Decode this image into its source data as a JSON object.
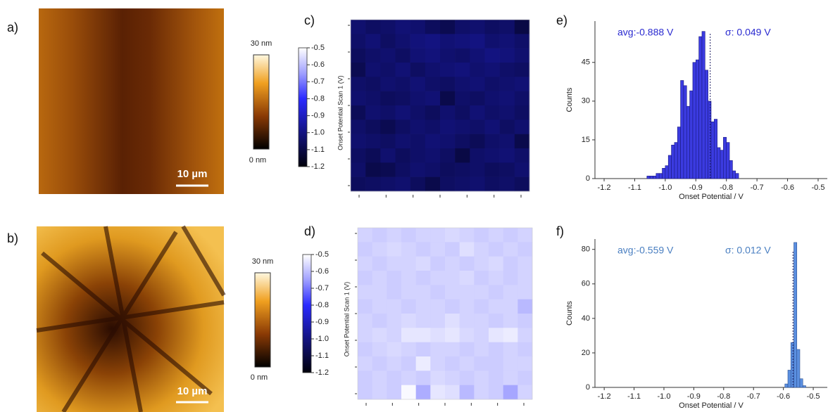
{
  "afm": [
    {
      "label": "a)",
      "colorbar_max": "30 nm",
      "colorbar_min": "0 nm",
      "scale_bar": "10 µm"
    },
    {
      "label": "b)",
      "colorbar_max": "30 nm",
      "colorbar_min": "0 nm",
      "scale_bar": "10 µm"
    }
  ],
  "maps": [
    {
      "label": "c)",
      "colorbar_label": "Onset Potential Scan 1 (V)",
      "clim": [
        -1.2,
        -0.5
      ],
      "cticks": [
        -0.5,
        -0.6,
        -0.7,
        -0.8,
        -0.9,
        {
          "value": -1,
          "label": "-1.0"
        },
        -1.1,
        -1.2
      ],
      "colormap": [
        {
          "value": -1.2,
          "color": "#00000a"
        },
        {
          "value": -1,
          "color": "#131380"
        },
        {
          "value": -0.8,
          "color": "#2a2aff"
        },
        {
          "value": -0.65,
          "color": "#a0a0ff"
        },
        {
          "value": -0.5,
          "color": "#ffffff"
        }
      ],
      "values": [
        [
          -1.03,
          -1.05,
          -1.04,
          -1.02,
          -1.03,
          -1.06,
          -1.08,
          -1.04,
          -1.03,
          -1.05,
          -1.04,
          -1.1
        ],
        [
          -1.04,
          -1.02,
          -1.05,
          -1.03,
          -1.01,
          -1.0,
          -1.02,
          -1.01,
          -1.0,
          -1.03,
          -1.02,
          -1.04
        ],
        [
          -1.06,
          -1.04,
          -1.03,
          -1.05,
          -1.02,
          -1.01,
          -1.03,
          -1.04,
          -1.02,
          -1.0,
          -1.01,
          -1.03
        ],
        [
          -1.08,
          -1.03,
          -1.04,
          -1.02,
          -1.05,
          -1.03,
          -1.02,
          -1.01,
          -1.03,
          -1.02,
          -1.04,
          -1.05
        ],
        [
          -1.04,
          -1.05,
          -1.03,
          -1.04,
          -1.02,
          -1.04,
          -1.05,
          -1.03,
          -1.02,
          -1.04,
          -1.03,
          -1.02
        ],
        [
          -1.03,
          -1.04,
          -1.06,
          -1.05,
          -1.03,
          -1.02,
          -1.09,
          -1.04,
          -1.05,
          -1.03,
          -1.02,
          -1.04
        ],
        [
          -1.07,
          -1.03,
          -1.04,
          -1.02,
          -1.04,
          -1.06,
          -1.03,
          -1.05,
          -1.02,
          -1.04,
          -1.03,
          -1.05
        ],
        [
          -1.04,
          -1.06,
          -1.08,
          -1.05,
          -1.03,
          -1.04,
          -1.02,
          -1.03,
          -1.04,
          -1.02,
          -1.05,
          -1.03
        ],
        [
          -1.03,
          -1.04,
          -1.05,
          -1.03,
          -1.04,
          -1.02,
          -1.03,
          -1.05,
          -1.07,
          -1.04,
          -1.03,
          -1.09
        ],
        [
          -1.05,
          -1.07,
          -1.03,
          -1.06,
          -1.04,
          -1.03,
          -1.05,
          -1.1,
          -1.04,
          -1.03,
          -1.02,
          -1.04
        ],
        [
          -1.04,
          -1.09,
          -1.08,
          -1.05,
          -1.03,
          -1.04,
          -1.06,
          -1.05,
          -1.04,
          -1.06,
          -1.05,
          -1.03
        ],
        [
          -1.06,
          -1.05,
          -1.04,
          -1.03,
          -1.06,
          -1.09,
          -1.05,
          -1.04,
          -1.03,
          -1.05,
          -1.04,
          -1.06
        ]
      ]
    },
    {
      "label": "d)",
      "colorbar_label": "Onset Potential Scan 1 (V)",
      "clim": [
        -1.2,
        -0.5
      ],
      "cticks": [
        -0.5,
        -0.6,
        -0.7,
        -0.8,
        -0.9,
        {
          "value": -1,
          "label": "-1.0"
        },
        -1.1,
        -1.2
      ],
      "colormap": [
        {
          "value": -1.2,
          "color": "#00000a"
        },
        {
          "value": -1,
          "color": "#131380"
        },
        {
          "value": -0.8,
          "color": "#2a2aff"
        },
        {
          "value": -0.65,
          "color": "#a0a0ff"
        },
        {
          "value": -0.5,
          "color": "#ffffff"
        }
      ],
      "values": [
        [
          -0.57,
          -0.58,
          -0.57,
          -0.58,
          -0.57,
          -0.57,
          -0.56,
          -0.57,
          -0.58,
          -0.57,
          -0.58,
          -0.57
        ],
        [
          -0.58,
          -0.57,
          -0.56,
          -0.57,
          -0.58,
          -0.57,
          -0.58,
          -0.55,
          -0.57,
          -0.58,
          -0.57,
          -0.58
        ],
        [
          -0.57,
          -0.58,
          -0.57,
          -0.57,
          -0.56,
          -0.58,
          -0.57,
          -0.58,
          -0.57,
          -0.56,
          -0.58,
          -0.57
        ],
        [
          -0.58,
          -0.57,
          -0.58,
          -0.57,
          -0.58,
          -0.57,
          -0.57,
          -0.56,
          -0.58,
          -0.57,
          -0.58,
          -0.57
        ],
        [
          -0.57,
          -0.57,
          -0.58,
          -0.57,
          -0.57,
          -0.58,
          -0.57,
          -0.57,
          -0.57,
          -0.58,
          -0.57,
          -0.57
        ],
        [
          -0.58,
          -0.57,
          -0.57,
          -0.58,
          -0.57,
          -0.57,
          -0.58,
          -0.57,
          -0.58,
          -0.57,
          -0.57,
          -0.61
        ],
        [
          -0.57,
          -0.58,
          -0.57,
          -0.56,
          -0.57,
          -0.57,
          -0.55,
          -0.57,
          -0.57,
          -0.58,
          -0.57,
          -0.58
        ],
        [
          -0.57,
          -0.56,
          -0.57,
          -0.54,
          -0.54,
          -0.55,
          -0.54,
          -0.56,
          -0.57,
          -0.54,
          -0.53,
          -0.57
        ],
        [
          -0.58,
          -0.57,
          -0.56,
          -0.57,
          -0.58,
          -0.57,
          -0.57,
          -0.58,
          -0.57,
          -0.58,
          -0.57,
          -0.58
        ],
        [
          -0.57,
          -0.58,
          -0.57,
          -0.58,
          -0.53,
          -0.57,
          -0.58,
          -0.57,
          -0.58,
          -0.58,
          -0.57,
          -0.57
        ],
        [
          -0.58,
          -0.57,
          -0.58,
          -0.57,
          -0.58,
          -0.56,
          -0.57,
          -0.58,
          -0.57,
          -0.58,
          -0.57,
          -0.58
        ],
        [
          -0.58,
          -0.57,
          -0.58,
          -0.51,
          -0.63,
          -0.54,
          -0.55,
          -0.61,
          -0.57,
          -0.58,
          -0.64,
          -0.57
        ]
      ]
    }
  ],
  "chart_data": [
    {
      "type": "histogram",
      "label": "e)",
      "xlabel": "Onset Potential /  V",
      "ylabel": "Counts",
      "annotations": [
        "avg:-0.888 V",
        "σ: 0.049 V"
      ],
      "annotation_color": "#2a2ad0",
      "color": "#3b3be0",
      "edge_color": "#1a1a80",
      "bins": [
        -1.06,
        -1.05,
        -1.04,
        -1.03,
        -1.02,
        -1.01,
        -1.0,
        -0.99,
        -0.98,
        -0.97,
        -0.96,
        -0.95,
        -0.94,
        -0.93,
        -0.92,
        -0.91,
        -0.9,
        -0.89,
        -0.88,
        -0.87,
        -0.86,
        -0.85,
        -0.84,
        -0.83,
        -0.82,
        -0.81,
        -0.8,
        -0.79,
        -0.78,
        -0.77,
        -0.76
      ],
      "counts": [
        1,
        1,
        1,
        2,
        2,
        4,
        5,
        9,
        13,
        14,
        20,
        38,
        36,
        28,
        34,
        45,
        46,
        55,
        57,
        42,
        30,
        22,
        23,
        12,
        11,
        16,
        14,
        7,
        3,
        2
      ],
      "reference_line": -0.853,
      "xlim": [
        -1.23,
        -0.47
      ],
      "ylim": [
        0,
        61
      ],
      "xticks": [
        -1.2,
        -1.1,
        {
          "value": -1,
          "label": "-1.0"
        },
        -0.9,
        -0.8,
        -0.7,
        -0.6,
        -0.5
      ],
      "yticks": [
        0,
        15,
        30,
        45
      ]
    },
    {
      "type": "histogram",
      "label": "f)",
      "xlabel": "Onset Potential /  V",
      "ylabel": "Counts",
      "annotations": [
        "avg:-0.559 V",
        "σ: 0.012 V"
      ],
      "annotation_color": "#4a7fc1",
      "color": "#5b8fe0",
      "edge_color": "#2a4f90",
      "bins": [
        -0.595,
        -0.585,
        -0.575,
        -0.565,
        -0.555,
        -0.545,
        -0.535,
        -0.525
      ],
      "counts": [
        2,
        10,
        26,
        84,
        22,
        5,
        1
      ],
      "reference_line": -0.568,
      "xlim": [
        -1.231,
        -0.453
      ],
      "ylim": [
        0,
        86
      ],
      "xticks": [
        -1.2,
        -1.1,
        {
          "value": -1,
          "label": "-1.0"
        },
        -0.9,
        -0.8,
        -0.7,
        -0.6,
        -0.5
      ],
      "yticks": [
        0,
        20,
        40,
        60,
        80
      ]
    }
  ]
}
